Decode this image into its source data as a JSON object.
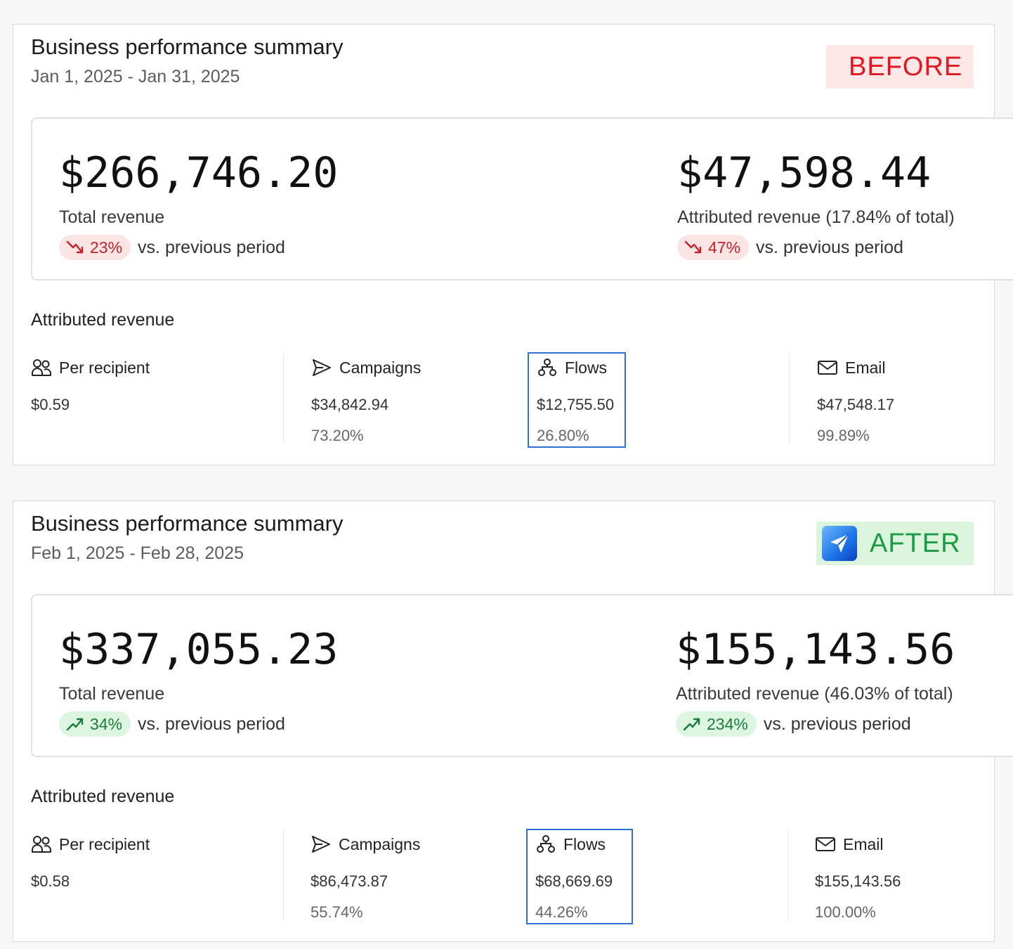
{
  "panels": [
    {
      "title": "Business performance summary",
      "date_range": "Jan 1, 2025 - Jan 31, 2025",
      "tag": "BEFORE",
      "total_revenue": {
        "value": "$266,746.20",
        "label": "Total revenue",
        "delta": "23%",
        "delta_direction": "down",
        "delta_text": "vs. previous period"
      },
      "attributed_revenue": {
        "value": "$47,598.44",
        "label": "Attributed revenue (17.84% of total)",
        "delta": "47%",
        "delta_direction": "down",
        "delta_text": "vs. previous period"
      },
      "section_title": "Attributed revenue",
      "stats": [
        {
          "label": "Per recipient",
          "icon": "people-icon",
          "amount": "$0.59"
        },
        {
          "label": "Campaigns",
          "icon": "send-icon",
          "amount": "$34,842.94",
          "share": "73.20%"
        },
        {
          "label": "Flows",
          "icon": "flows-icon",
          "amount": "$12,755.50",
          "share": "26.80%",
          "highlighted": true
        },
        {
          "label": "Email",
          "icon": "mail-icon",
          "amount": "$47,548.17",
          "share": "99.89%"
        }
      ]
    },
    {
      "title": "Business performance summary",
      "date_range": "Feb 1, 2025 - Feb 28, 2025",
      "tag": "AFTER",
      "total_revenue": {
        "value": "$337,055.23",
        "label": "Total revenue",
        "delta": "34%",
        "delta_direction": "up",
        "delta_text": "vs. previous period"
      },
      "attributed_revenue": {
        "value": "$155,143.56",
        "label": "Attributed revenue (46.03% of total)",
        "delta": "234%",
        "delta_direction": "up",
        "delta_text": "vs. previous period"
      },
      "section_title": "Attributed revenue",
      "stats": [
        {
          "label": "Per recipient",
          "icon": "people-icon",
          "amount": "$0.58"
        },
        {
          "label": "Campaigns",
          "icon": "send-icon",
          "amount": "$86,473.87",
          "share": "55.74%"
        },
        {
          "label": "Flows",
          "icon": "flows-icon",
          "amount": "$68,669.69",
          "share": "44.26%",
          "highlighted": true
        },
        {
          "label": "Email",
          "icon": "mail-icon",
          "amount": "$155,143.56",
          "share": "100.00%"
        }
      ]
    }
  ],
  "colors": {
    "before_tag_bg": "#fde8e8",
    "before_tag_text": "#e4161f",
    "after_tag_bg": "#dbf5dd",
    "after_tag_text": "#1d9a45",
    "delta_down": "#c2222b",
    "delta_up": "#1b7a3a",
    "highlight_border": "#2f6fd6"
  }
}
